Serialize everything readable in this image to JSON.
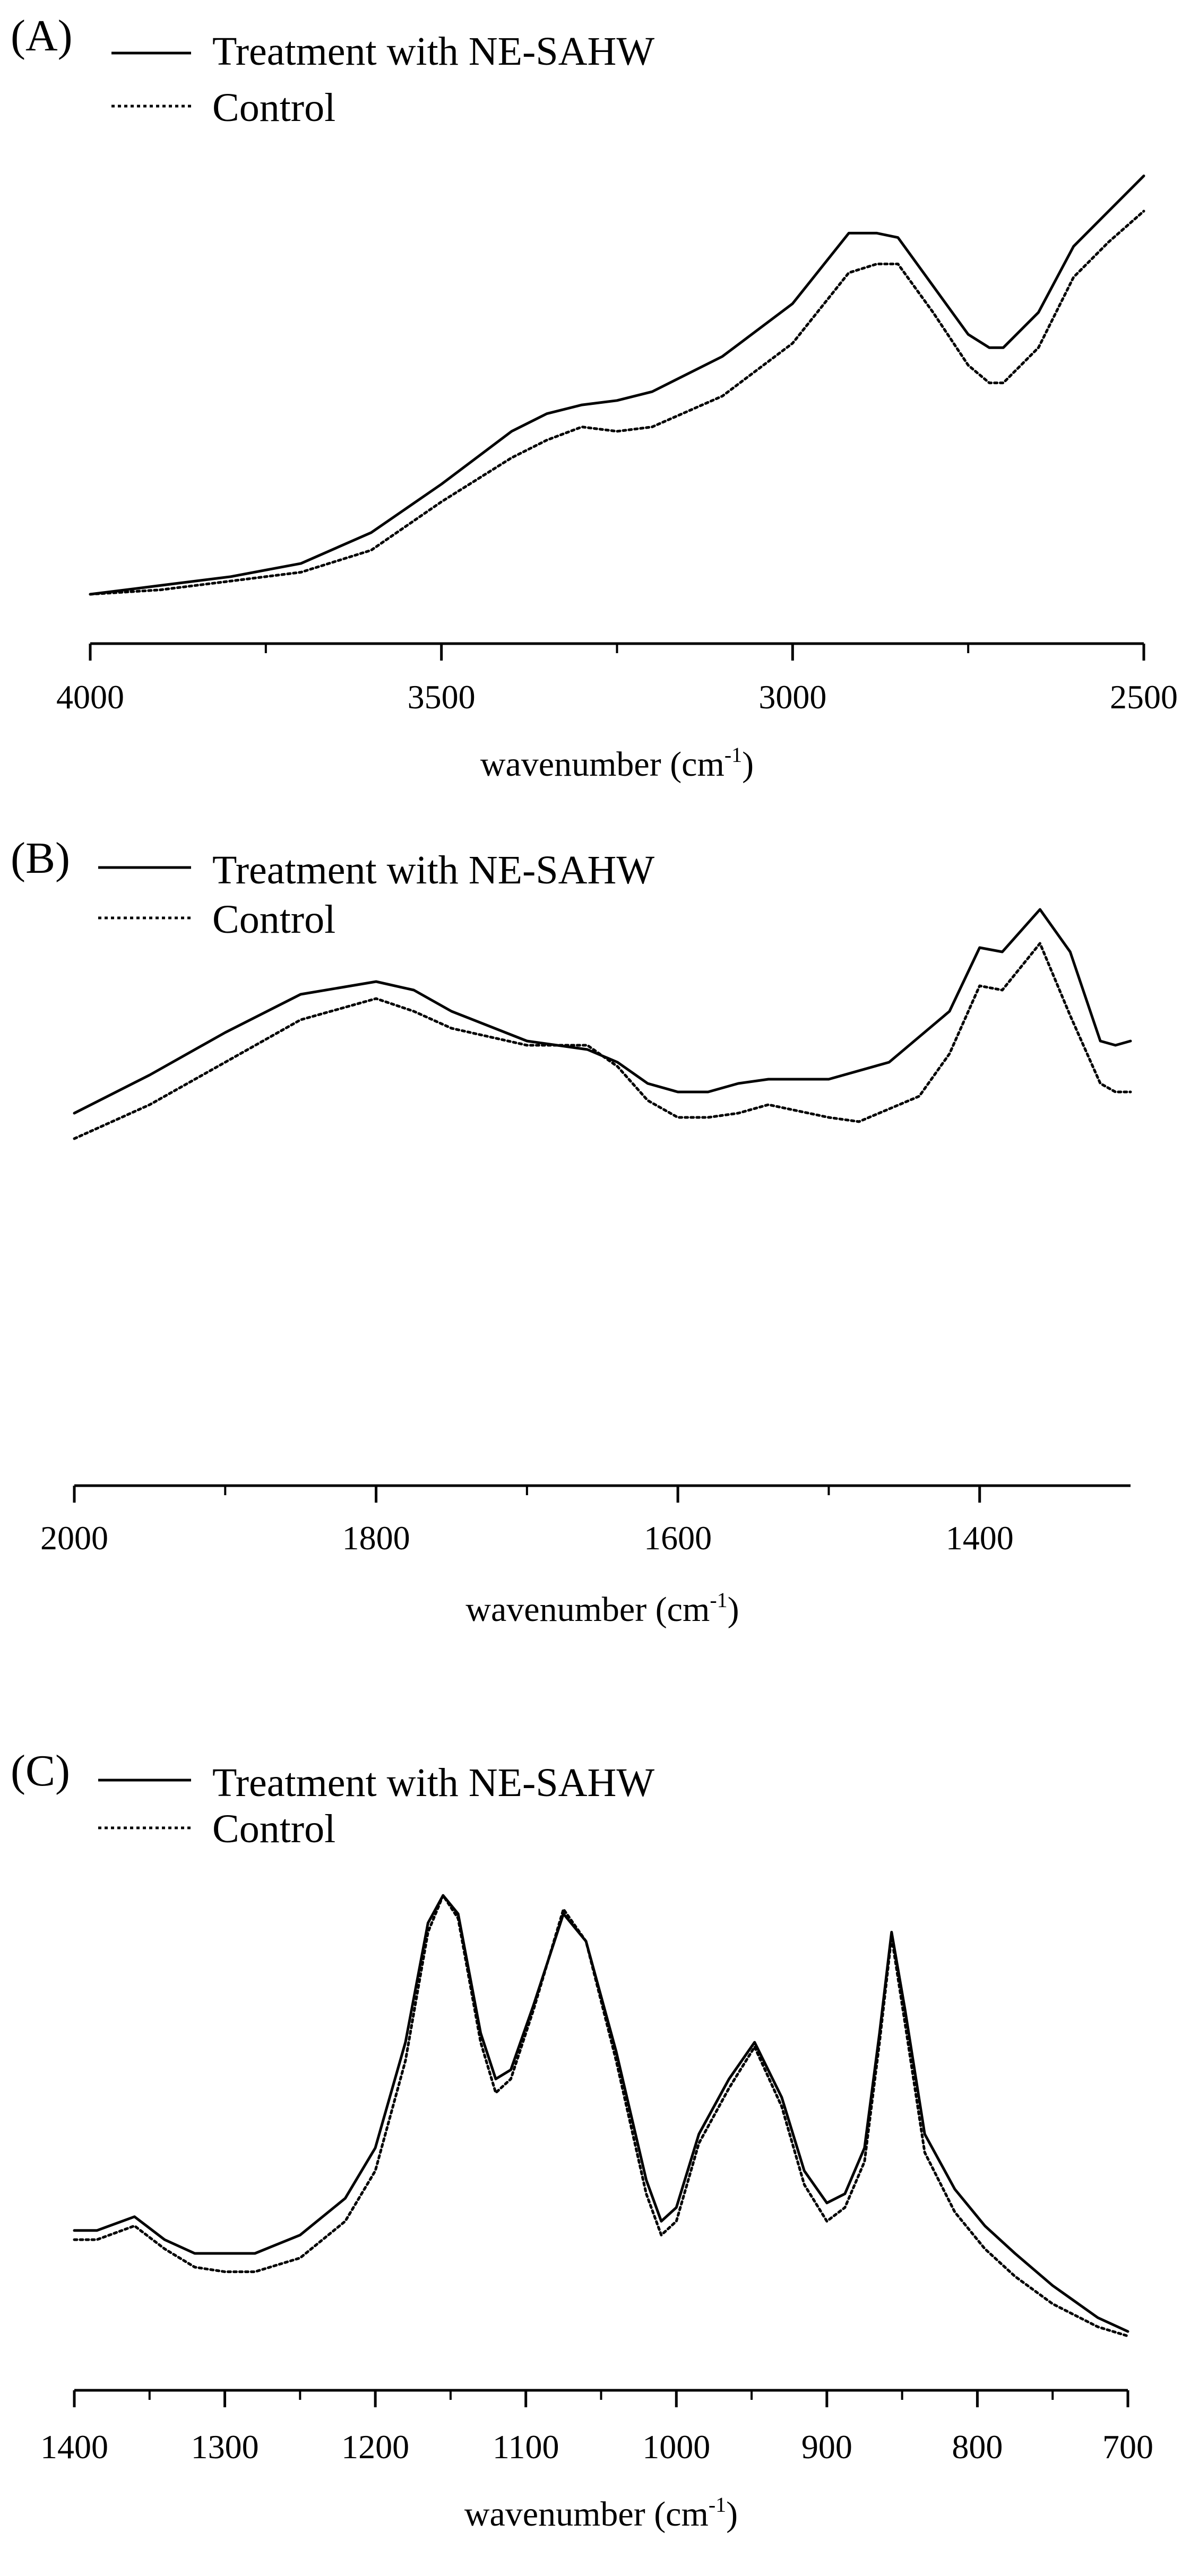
{
  "chart_data": [
    {
      "panel": "A",
      "type": "line",
      "title": "",
      "xlabel": "wavenumber (cm",
      "xlabel_sup": "-1",
      "xlabel_close": ")",
      "xlim": [
        4000,
        2500
      ],
      "x_ticks": [
        4000,
        3500,
        3000,
        2500
      ],
      "ylim": [
        0,
        1
      ],
      "ylabel": "",
      "grid": false,
      "legend_position": "top-left",
      "series": [
        {
          "name": "Treatment with NE-SAHW",
          "style": "solid",
          "x": [
            4000,
            3900,
            3800,
            3700,
            3600,
            3500,
            3400,
            3350,
            3300,
            3250,
            3200,
            3100,
            3000,
            2950,
            2920,
            2900,
            2880,
            2850,
            2800,
            2750,
            2720,
            2700,
            2650,
            2600,
            2550,
            2500
          ],
          "y": [
            0.0,
            0.02,
            0.04,
            0.07,
            0.14,
            0.25,
            0.37,
            0.41,
            0.43,
            0.44,
            0.46,
            0.54,
            0.66,
            0.76,
            0.82,
            0.82,
            0.82,
            0.81,
            0.7,
            0.59,
            0.56,
            0.56,
            0.64,
            0.79,
            0.87,
            0.95
          ]
        },
        {
          "name": "Control",
          "style": "dotted",
          "x": [
            4000,
            3900,
            3800,
            3700,
            3600,
            3500,
            3400,
            3350,
            3300,
            3250,
            3200,
            3100,
            3000,
            2950,
            2920,
            2900,
            2880,
            2850,
            2800,
            2750,
            2720,
            2700,
            2650,
            2600,
            2550,
            2500
          ],
          "y": [
            0.0,
            0.01,
            0.03,
            0.05,
            0.1,
            0.21,
            0.31,
            0.35,
            0.38,
            0.37,
            0.38,
            0.45,
            0.57,
            0.67,
            0.73,
            0.74,
            0.75,
            0.75,
            0.64,
            0.52,
            0.48,
            0.48,
            0.56,
            0.72,
            0.8,
            0.87
          ]
        }
      ]
    },
    {
      "panel": "B",
      "type": "line",
      "title": "",
      "xlabel": "wavenumber (cm",
      "xlabel_sup": "-1",
      "xlabel_close": ")",
      "xlim": [
        2000,
        1300
      ],
      "x_ticks": [
        2000,
        1800,
        1600,
        1400
      ],
      "ylim": [
        0,
        1
      ],
      "ylabel": "",
      "grid": false,
      "legend_position": "top-left",
      "series": [
        {
          "name": "Treatment with NE-SAHW",
          "style": "solid",
          "x": [
            2000,
            1950,
            1900,
            1850,
            1800,
            1775,
            1750,
            1700,
            1660,
            1640,
            1620,
            1600,
            1580,
            1560,
            1540,
            1500,
            1460,
            1420,
            1400,
            1385,
            1360,
            1340,
            1320,
            1310,
            1300
          ],
          "y": [
            0.44,
            0.53,
            0.63,
            0.72,
            0.75,
            0.73,
            0.68,
            0.61,
            0.59,
            0.56,
            0.51,
            0.49,
            0.49,
            0.51,
            0.52,
            0.52,
            0.56,
            0.68,
            0.83,
            0.82,
            0.92,
            0.82,
            0.61,
            0.6,
            0.61
          ]
        },
        {
          "name": "Control",
          "style": "dotted",
          "x": [
            2000,
            1950,
            1900,
            1850,
            1800,
            1775,
            1750,
            1700,
            1660,
            1640,
            1620,
            1600,
            1580,
            1560,
            1540,
            1500,
            1480,
            1440,
            1420,
            1400,
            1385,
            1360,
            1340,
            1320,
            1310,
            1300
          ],
          "y": [
            0.38,
            0.46,
            0.56,
            0.66,
            0.71,
            0.68,
            0.64,
            0.6,
            0.6,
            0.55,
            0.47,
            0.43,
            0.43,
            0.44,
            0.46,
            0.43,
            0.42,
            0.48,
            0.58,
            0.74,
            0.73,
            0.84,
            0.67,
            0.51,
            0.49,
            0.49
          ]
        }
      ]
    },
    {
      "panel": "C",
      "type": "line",
      "title": "",
      "xlabel": "wavenumber (cm",
      "xlabel_sup": "-1",
      "xlabel_close": ")",
      "xlim": [
        1400,
        700
      ],
      "x_ticks": [
        1400,
        1300,
        1200,
        1100,
        1000,
        900,
        800,
        700
      ],
      "ylim": [
        0,
        1
      ],
      "ylabel": "",
      "grid": false,
      "legend_position": "top-left",
      "series": [
        {
          "name": "Treatment with NE-SAHW",
          "style": "solid",
          "x": [
            1400,
            1385,
            1360,
            1340,
            1320,
            1300,
            1280,
            1250,
            1220,
            1200,
            1180,
            1165,
            1155,
            1145,
            1130,
            1120,
            1110,
            1095,
            1075,
            1060,
            1040,
            1020,
            1010,
            1000,
            985,
            965,
            948,
            930,
            915,
            900,
            888,
            875,
            865,
            857,
            848,
            835,
            815,
            795,
            775,
            750,
            720,
            700
          ],
          "y": [
            0.25,
            0.25,
            0.28,
            0.23,
            0.2,
            0.2,
            0.2,
            0.24,
            0.32,
            0.43,
            0.66,
            0.92,
            0.98,
            0.94,
            0.68,
            0.58,
            0.6,
            0.74,
            0.94,
            0.88,
            0.64,
            0.36,
            0.27,
            0.3,
            0.46,
            0.58,
            0.66,
            0.54,
            0.38,
            0.31,
            0.33,
            0.43,
            0.68,
            0.9,
            0.73,
            0.46,
            0.34,
            0.26,
            0.2,
            0.13,
            0.06,
            0.03
          ]
        },
        {
          "name": "Control",
          "style": "dotted",
          "x": [
            1400,
            1385,
            1360,
            1340,
            1320,
            1300,
            1280,
            1250,
            1220,
            1200,
            1180,
            1165,
            1155,
            1145,
            1130,
            1120,
            1110,
            1095,
            1075,
            1060,
            1040,
            1020,
            1010,
            1000,
            985,
            965,
            948,
            930,
            915,
            900,
            888,
            875,
            865,
            857,
            848,
            835,
            815,
            795,
            775,
            750,
            720,
            700
          ],
          "y": [
            0.23,
            0.23,
            0.26,
            0.21,
            0.17,
            0.16,
            0.16,
            0.19,
            0.27,
            0.38,
            0.62,
            0.9,
            0.98,
            0.93,
            0.66,
            0.55,
            0.58,
            0.73,
            0.95,
            0.88,
            0.62,
            0.33,
            0.24,
            0.27,
            0.44,
            0.56,
            0.65,
            0.52,
            0.35,
            0.27,
            0.3,
            0.4,
            0.66,
            0.89,
            0.7,
            0.42,
            0.29,
            0.21,
            0.15,
            0.09,
            0.04,
            0.02
          ]
        }
      ]
    }
  ]
}
